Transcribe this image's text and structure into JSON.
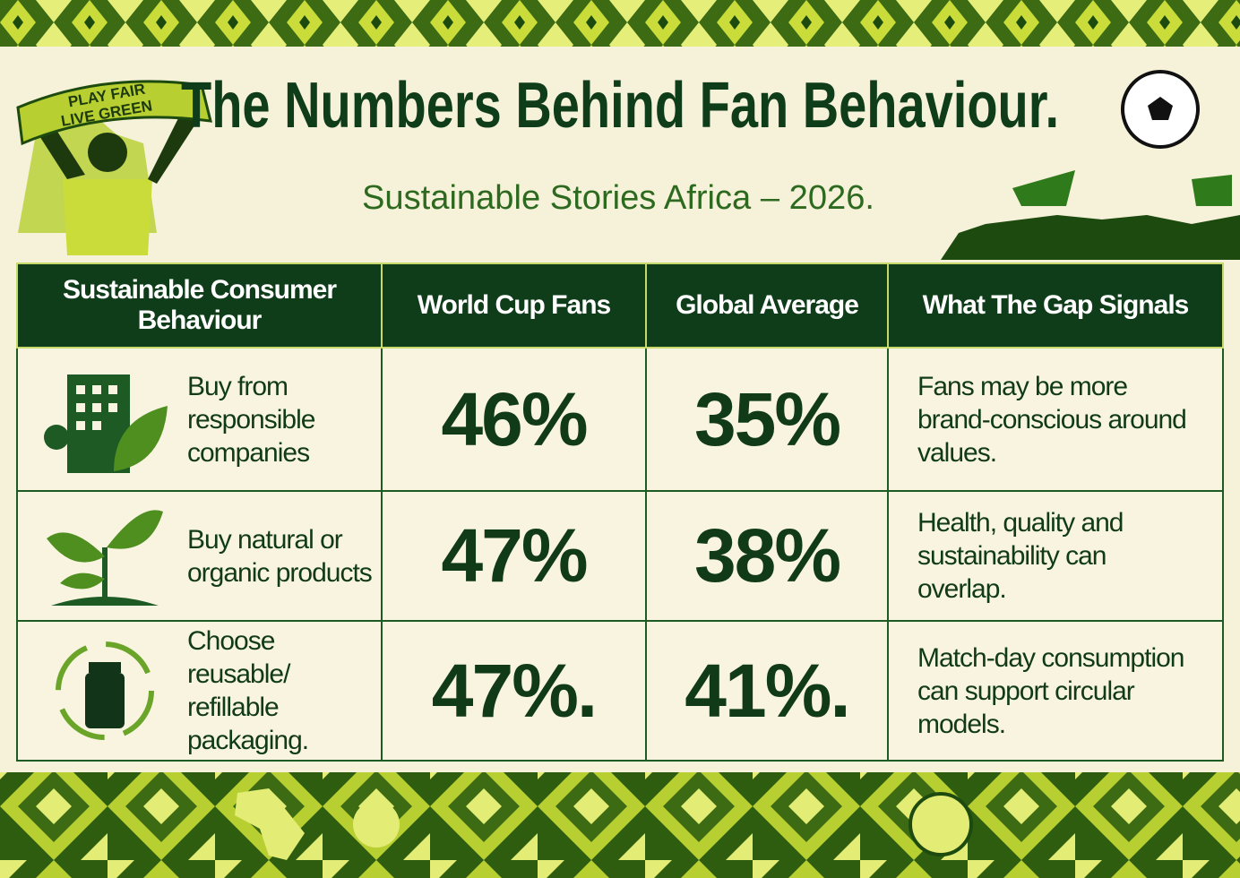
{
  "header": {
    "title": "The Numbers Behind Fan Behaviour.",
    "subtitle": "Sustainable Stories Africa – 2026.",
    "scarf_top": "PLAY FAIR",
    "scarf_bottom": "LIVE GREEN"
  },
  "table": {
    "columns": [
      "Sustainable Consumer Behaviour",
      "World Cup Fans",
      "Global Average",
      "What The Gap Signals"
    ],
    "rows": [
      [
        "Buy from responsible companies",
        "46%",
        "35%",
        "Fans may be more brand-conscious around values."
      ],
      [
        "Buy natural or organic products",
        "47%",
        "38%",
        "Health, quality and sustainability can overlap."
      ],
      [
        "Choose reusable/ refillable packaging.",
        "47%.",
        "41%.",
        "Match-day consumption can support circular models."
      ]
    ]
  }
}
